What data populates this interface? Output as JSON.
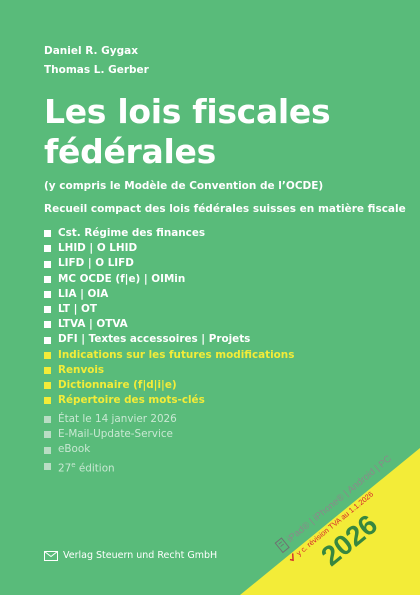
{
  "authors": [
    "Daniel R. Gygax",
    "Thomas L. Gerber"
  ],
  "title_lines": [
    "Les lois fiscales",
    "fédérales"
  ],
  "subtitle": "(y compris le Modèle de Convention de l’OCDE)",
  "tagline": "Recueil compact des lois fédérales suisses en matière fiscale",
  "contents": [
    {
      "label": "Cst. Régime des finances",
      "highlight": false
    },
    {
      "label": "LHID | O LHID",
      "highlight": false
    },
    {
      "label": "LIFD | O LIFD",
      "highlight": false
    },
    {
      "label": "MC OCDE (f|e) | OIMin",
      "highlight": false
    },
    {
      "label": "LIA | OIA",
      "highlight": false
    },
    {
      "label": "LT | OT",
      "highlight": false
    },
    {
      "label": "LTVA | OTVA",
      "highlight": false
    },
    {
      "label": "DFI | Textes accessoires | Projets",
      "highlight": false
    },
    {
      "label": "Indications sur les futures modifications",
      "highlight": true
    },
    {
      "label": "Renvois",
      "highlight": true
    },
    {
      "label": "Dictionnaire (f|d|i|e)",
      "highlight": true
    },
    {
      "label": "Répertoire des mots-clés",
      "highlight": true
    }
  ],
  "meta": {
    "state": "État le 14 janvier 2026",
    "service": "E-Mail-Update-Service",
    "ebook": "eBook",
    "edition_number": "27",
    "edition_suffix": "e",
    "edition_word": "édition"
  },
  "publisher": "Verlag Steuern und Recht GmbH",
  "banner": {
    "platforms": "iPad® | iPhone® | Android | PC",
    "note": "y c. révision TVA au 1.1.2026",
    "year": "2026"
  },
  "colors": {
    "background": "#59bb7a",
    "highlight": "#f3ec38",
    "banner": "#f3ec38"
  },
  "icons": {
    "bullet": "square-bullet",
    "publisher": "envelope-logo-icon",
    "device": "tablet-icon",
    "check": "check-icon"
  }
}
